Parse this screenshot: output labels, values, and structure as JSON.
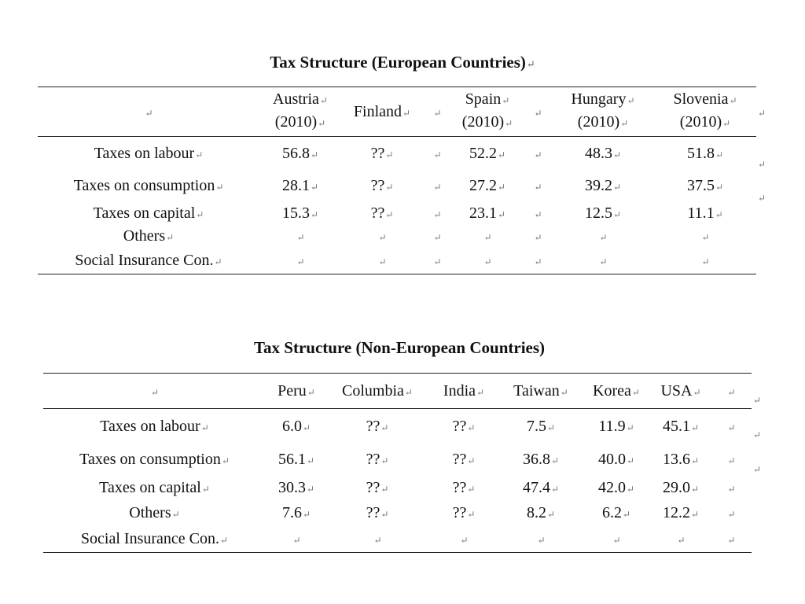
{
  "para_mark": "↵",
  "european": {
    "title": "Tax Structure (European Countries)",
    "columns": [
      {
        "name": "Austria",
        "year": "(2010)"
      },
      {
        "name": "Finland",
        "year": ""
      },
      {
        "name": "",
        "year": ""
      },
      {
        "name": "Spain",
        "year": "(2010)"
      },
      {
        "name": "",
        "year": ""
      },
      {
        "name": "Hungary",
        "year": "(2010)"
      },
      {
        "name": "Slovenia",
        "year": "(2010)"
      }
    ],
    "rows": [
      {
        "label": "Taxes on labour",
        "values": [
          "56.8",
          "??",
          "",
          "52.2",
          "",
          "48.3",
          "51.8"
        ]
      },
      {
        "label": "Taxes on consumption",
        "values": [
          "28.1",
          "??",
          "",
          "27.2",
          "",
          "39.2",
          "37.5"
        ]
      },
      {
        "label": "Taxes on capital",
        "values": [
          "15.3",
          "??",
          "",
          "23.1",
          "",
          "12.5",
          "11.1"
        ]
      },
      {
        "label": "Others",
        "values": [
          "",
          "",
          "",
          "",
          "",
          "",
          ""
        ]
      },
      {
        "label": "Social Insurance Con.",
        "values": [
          "",
          "",
          "",
          "",
          "",
          "",
          ""
        ]
      }
    ]
  },
  "non_european": {
    "title": "Tax Structure (Non-European Countries)",
    "columns": [
      "Peru",
      "Columbia",
      "India",
      "Taiwan",
      "Korea",
      "USA",
      ""
    ],
    "rows": [
      {
        "label": "Taxes on labour",
        "values": [
          "6.0",
          "??",
          "??",
          "7.5",
          "11.9",
          "45.1",
          ""
        ]
      },
      {
        "label": "Taxes on consumption",
        "values": [
          "56.1",
          "??",
          "??",
          "36.8",
          "40.0",
          "13.6",
          ""
        ]
      },
      {
        "label": "Taxes on capital",
        "values": [
          "30.3",
          "??",
          "??",
          "47.4",
          "42.0",
          "29.0",
          ""
        ]
      },
      {
        "label": "Others",
        "values": [
          "7.6",
          "??",
          "??",
          "8.2",
          "6.2",
          "12.2",
          ""
        ]
      },
      {
        "label": "Social Insurance Con.",
        "values": [
          "",
          "",
          "",
          "",
          "",
          "",
          ""
        ]
      }
    ]
  }
}
